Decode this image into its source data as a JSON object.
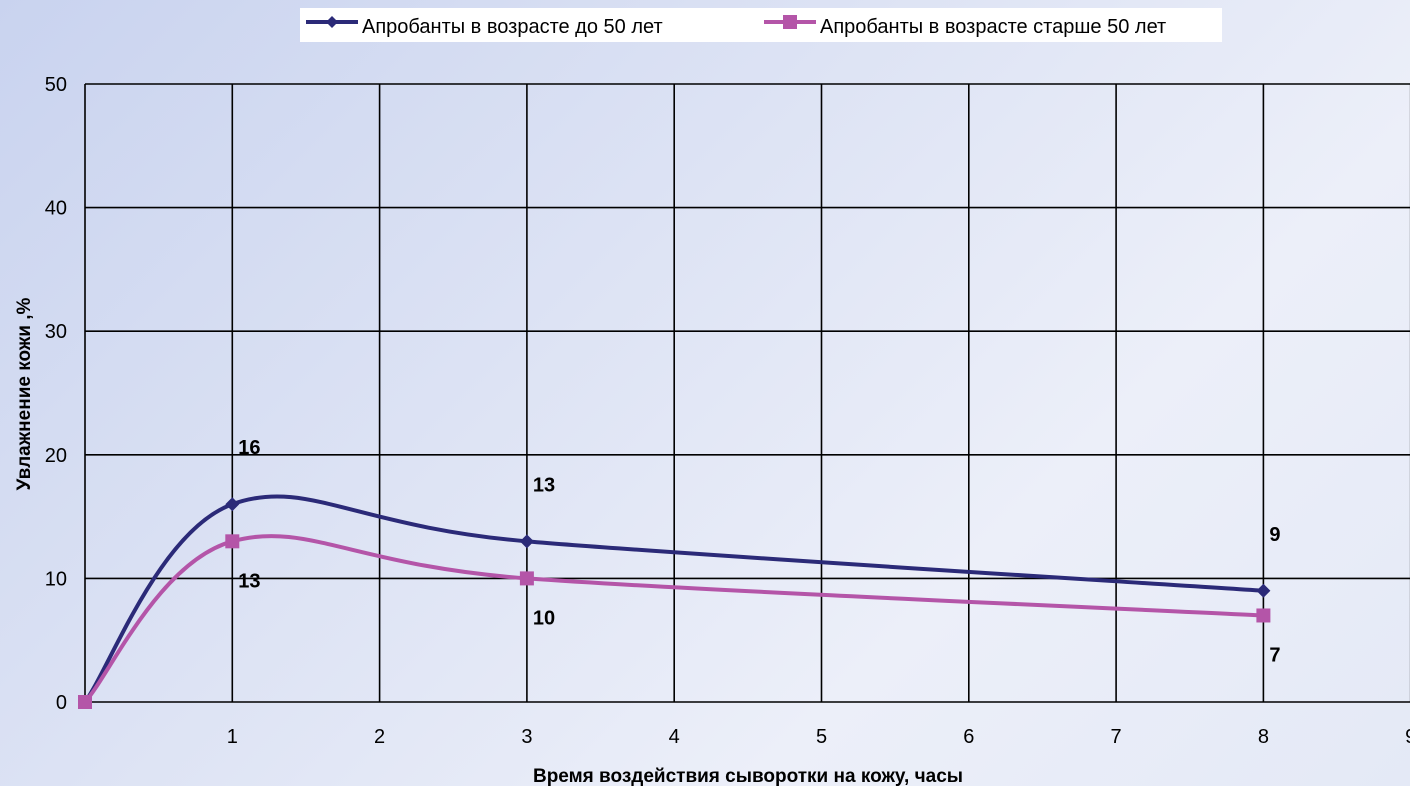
{
  "chart_data": {
    "type": "line",
    "xlabel": "Время воздействия сыворотки на кожу, часы",
    "ylabel": "Увлажнение кожи ,%",
    "xlim": [
      0,
      9
    ],
    "ylim": [
      0,
      50
    ],
    "xticks": [
      1,
      2,
      3,
      4,
      5,
      6,
      7,
      8,
      9
    ],
    "yticks": [
      0,
      10,
      20,
      30,
      40,
      50
    ],
    "grid": true,
    "legend_position": "top",
    "series": [
      {
        "name": "Апробанты в возрасте до 50 лет",
        "color": "#2b2a78",
        "marker": "diamond",
        "x": [
          0,
          1,
          3,
          8
        ],
        "y": [
          0,
          16,
          13,
          9
        ],
        "labels": [
          "",
          "16",
          "13",
          "9"
        ]
      },
      {
        "name": "Апробанты в возрасте старше 50 лет",
        "color": "#b455a8",
        "marker": "square",
        "x": [
          0,
          1,
          3,
          8
        ],
        "y": [
          0,
          13,
          10,
          7
        ],
        "labels": [
          "",
          "13",
          "10",
          "7"
        ]
      }
    ]
  }
}
